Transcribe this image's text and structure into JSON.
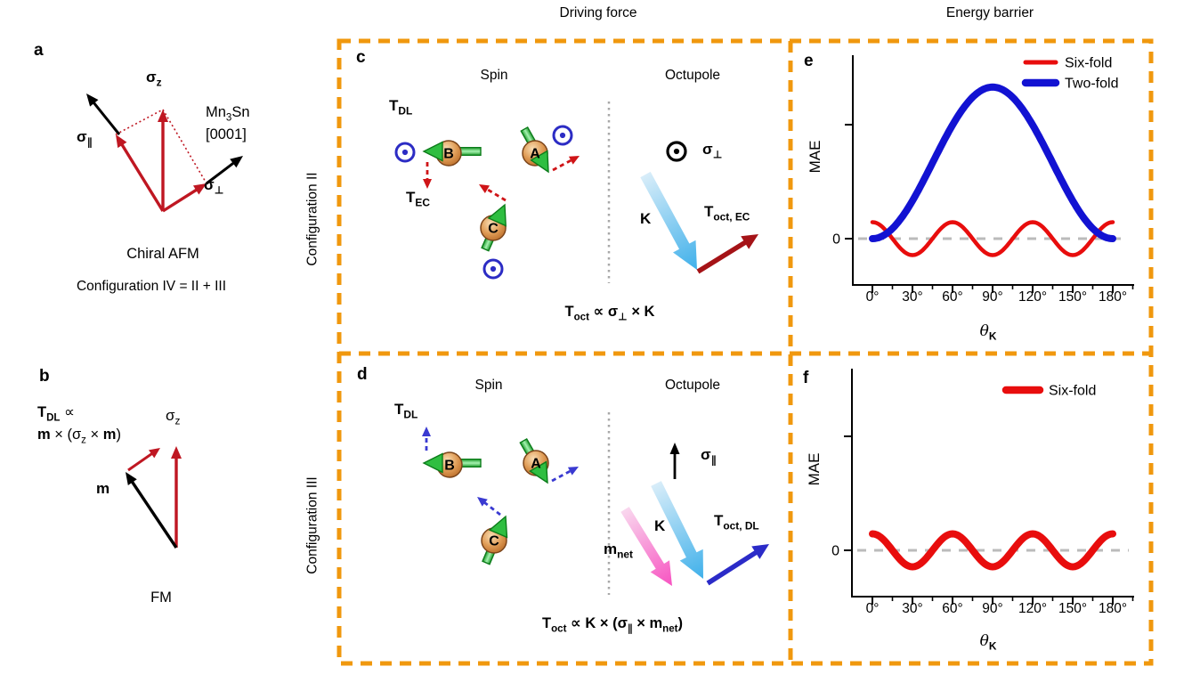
{
  "headers": {
    "driving_force": "Driving force",
    "energy_barrier": "Energy barrier"
  },
  "row_labels": {
    "config_ii": "Configuration II",
    "config_iii": "Configuration III"
  },
  "panels": {
    "a": {
      "label": "a",
      "sigma_z": {
        "base": "σ",
        "sub": "z"
      },
      "sigma_par": {
        "base": "σ",
        "sub": "∥"
      },
      "sigma_perp": {
        "base": "σ",
        "sub": "⊥"
      },
      "material": {
        "base": "Mn",
        "sub": "3",
        "tail": "Sn"
      },
      "axis_label": "[0001]",
      "caption": "Chiral AFM",
      "subcaption": "Configuration IV = II + III"
    },
    "b": {
      "label": "b",
      "torque_line1": {
        "t": "T",
        "t_sub": "DL",
        "prop": " ∝"
      },
      "torque_line2": {
        "m1": "m",
        "x1": " × (",
        "sigma": "σ",
        "sigma_sub": "z",
        "x2": " × ",
        "m2": "m",
        "close": ")"
      },
      "sigma_z": {
        "base": "σ",
        "sub": "z"
      },
      "m_label": "m",
      "caption": "FM"
    },
    "c": {
      "label": "c",
      "spin_title": "Spin",
      "octupole_title": "Octupole",
      "t_dl": {
        "base": "T",
        "sub": "DL"
      },
      "t_ec": {
        "base": "T",
        "sub": "EC"
      },
      "sites": {
        "a": "A",
        "b": "B",
        "c": "C"
      },
      "sigma_perp": {
        "base": "σ",
        "sub": "⊥"
      },
      "k_label": "K",
      "t_oct_ec": {
        "base": "T",
        "sub": "oct, EC"
      },
      "formula": {
        "t": "T",
        "t_sub": "oct",
        "prop": " ∝ ",
        "sigma": "σ",
        "sigma_sub": "⊥",
        "tail": " × K"
      }
    },
    "d": {
      "label": "d",
      "spin_title": "Spin",
      "octupole_title": "Octupole",
      "t_dl": {
        "base": "T",
        "sub": "DL"
      },
      "sites": {
        "a": "A",
        "b": "B",
        "c": "C"
      },
      "sigma_par": {
        "base": "σ",
        "sub": "∥"
      },
      "k_label": "K",
      "m_net": {
        "base": "m",
        "sub": "net"
      },
      "t_oct_dl": {
        "base": "T",
        "sub": "oct, DL"
      },
      "formula": {
        "t": "T",
        "t_sub": "oct",
        "prop": " ∝ ",
        "k": "K × (",
        "sigma": "σ",
        "sigma_sub": "∥",
        "times": " × ",
        "m": "m",
        "m_sub": "net",
        "close": ")"
      }
    },
    "e": {
      "label": "e"
    },
    "f": {
      "label": "f"
    }
  },
  "chart_data": [
    {
      "id": "e",
      "type": "line",
      "title": "",
      "ylabel": "MAE",
      "xlabel_theta": "θ",
      "xlabel_sub": "K",
      "y_zero_label": "0",
      "x_tick_labels": [
        "0°",
        "30°",
        "60°",
        "90°",
        "120°",
        "150°",
        "180°"
      ],
      "x_range_deg": [
        0,
        180
      ],
      "grid": false,
      "legend_position": "top-right",
      "zero_line": true,
      "series": [
        {
          "name": "Six-fold",
          "color": "#e80d0d",
          "model": "cos6",
          "amplitude": 1,
          "linewidth": 4.5
        },
        {
          "name": "Two-fold",
          "color": "#1212d2",
          "model": "sin2",
          "amplitude": 9.2,
          "linewidth": 8
        }
      ]
    },
    {
      "id": "f",
      "type": "line",
      "title": "",
      "ylabel": "MAE",
      "xlabel_theta": "θ",
      "xlabel_sub": "K",
      "y_zero_label": "0",
      "x_tick_labels": [
        "0°",
        "30°",
        "60°",
        "90°",
        "120°",
        "150°",
        "180°"
      ],
      "x_range_deg": [
        0,
        180
      ],
      "grid": false,
      "legend_position": "top-right",
      "zero_line": true,
      "series": [
        {
          "name": "Six-fold",
          "color": "#e80d0d",
          "model": "cos6",
          "amplitude": 1,
          "linewidth": 8
        }
      ]
    }
  ],
  "colors": {
    "accent_orange": "#f0980e",
    "vector_red": "#bf1722",
    "vector_black": "#000000",
    "dashed_red": "#cf1417",
    "dashed_blue": "#3a3ad1",
    "odot_blue": "#2c2cc4",
    "odot_black": "#000000",
    "green_fill": "#2fbe41",
    "green_dark": "#0c7c1a",
    "green_light": "#a6f2b0",
    "sphere_light": "#f9ddb3",
    "sphere_mid": "#df9b55",
    "sphere_dark": "#b96b28",
    "sphere_stroke": "#7c451a",
    "k_arrow_tail": "#d8edf9",
    "k_arrow_head": "#3fb0ea",
    "mnet_tail": "#f9d7ee",
    "mnet_head": "#f753c1",
    "toct_ec_red": "#a51317",
    "toct_dl_blue": "#2b2bc8",
    "divider_gray": "#a8a8a8",
    "zero_dash_gray": "#bbbbbb",
    "axis_black": "#000000"
  }
}
